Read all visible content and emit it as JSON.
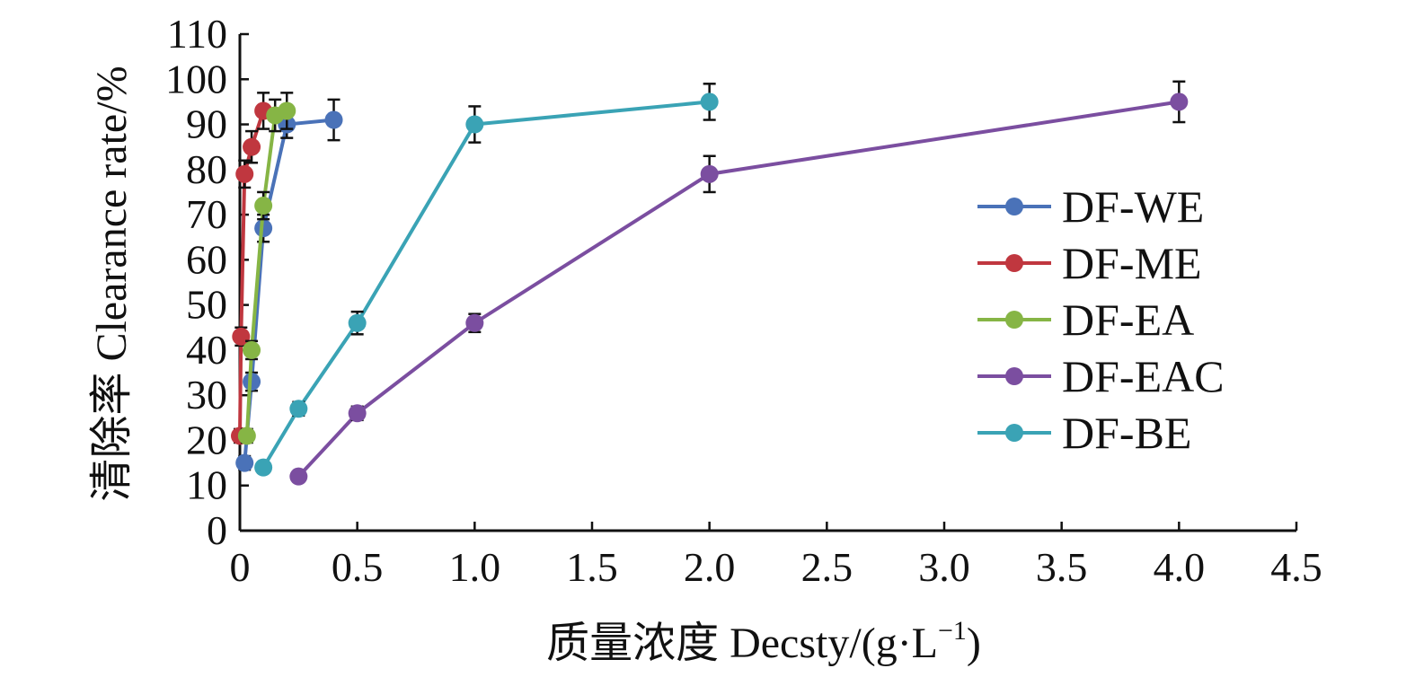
{
  "chart_data": {
    "type": "line",
    "title": "",
    "xlabel": "质量浓度 Decsty/(g·L",
    "xlabel_sup": "−1",
    "xlabel_close": ")",
    "ylabel": "清除率 Clearance rate/%",
    "xlim": [
      0,
      4.5
    ],
    "ylim": [
      0,
      110
    ],
    "xticks": [
      "0",
      "0.5",
      "1.0",
      "1.5",
      "2.0",
      "2.5",
      "3.0",
      "3.5",
      "4.0",
      "4.5"
    ],
    "yticks": [
      "0",
      "10",
      "20",
      "30",
      "40",
      "50",
      "60",
      "70",
      "80",
      "90",
      "100",
      "110"
    ],
    "legend_position": "right",
    "grid": false,
    "series": [
      {
        "name": "DF-WE",
        "color": "#4a72b8",
        "x": [
          0.02,
          0.05,
          0.1,
          0.2,
          0.4
        ],
        "y": [
          15,
          33,
          67,
          90,
          91
        ],
        "err": [
          1.5,
          2,
          3,
          3,
          4.5
        ]
      },
      {
        "name": "DF-ME",
        "color": "#c0373f",
        "x": [
          0.0,
          0.005,
          0.02,
          0.05,
          0.1
        ],
        "y": [
          21,
          43,
          79,
          85,
          93
        ],
        "err": [
          1.5,
          2,
          3,
          3.5,
          4
        ]
      },
      {
        "name": "DF-EA",
        "color": "#86b545",
        "x": [
          0.03,
          0.05,
          0.1,
          0.15,
          0.2
        ],
        "y": [
          21,
          40,
          72,
          92,
          93
        ],
        "err": [
          1.5,
          2,
          3,
          3.5,
          4
        ]
      },
      {
        "name": "DF-EAC",
        "color": "#7b4ea0",
        "x": [
          0.25,
          0.5,
          1.0,
          2.0,
          4.0
        ],
        "y": [
          12,
          26,
          46,
          79,
          95
        ],
        "err": [
          1,
          1.5,
          2,
          4,
          4.5
        ]
      },
      {
        "name": "DF-BE",
        "color": "#3aa3b5",
        "x": [
          0.1,
          0.25,
          0.5,
          1.0,
          2.0
        ],
        "y": [
          14,
          27,
          46,
          90,
          95
        ],
        "err": [
          1,
          1.5,
          2.5,
          4,
          4
        ]
      }
    ]
  }
}
